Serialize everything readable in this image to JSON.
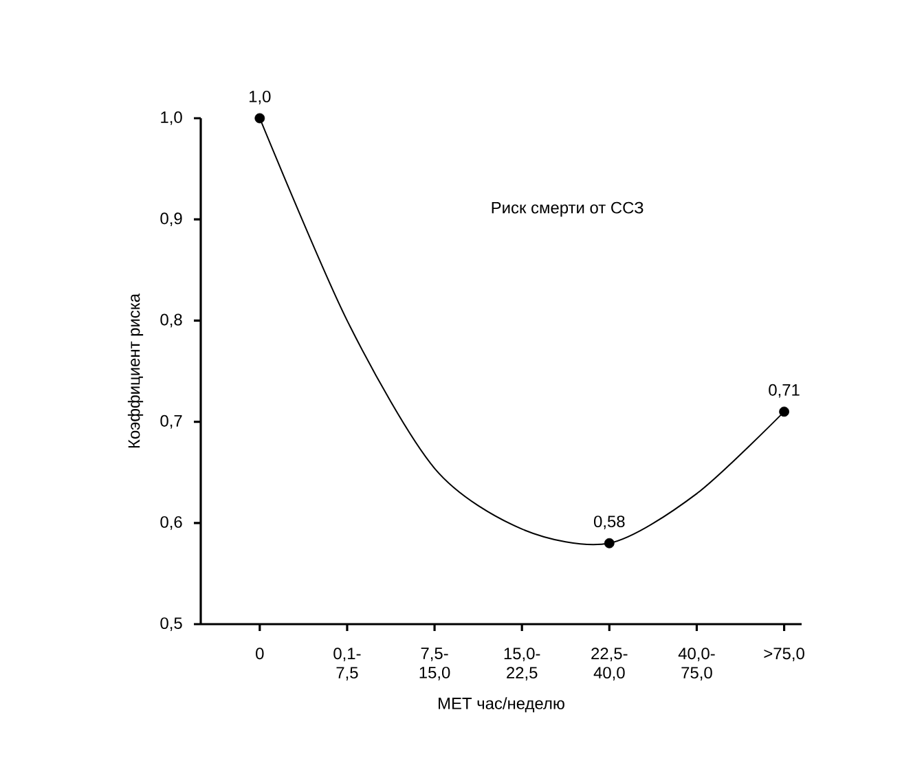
{
  "chart_data": {
    "type": "line",
    "xlabel": "МЕТ час/неделю",
    "ylabel": "Коэффициент риска",
    "annotations": [
      "Риск смерти от ССЗ"
    ],
    "categories": [
      "0",
      "0,1- 7,5",
      "7,5- 15,0",
      "15,0- 22,5",
      "22,5- 40,0",
      "40,0- 75,0",
      ">75,0"
    ],
    "ylim": [
      0.5,
      1.0
    ],
    "yticks": [
      {
        "value": 0.5,
        "label": "0,5"
      },
      {
        "value": 0.6,
        "label": "0,6"
      },
      {
        "value": 0.7,
        "label": "0,7"
      },
      {
        "value": 0.8,
        "label": "0,8"
      },
      {
        "value": 0.9,
        "label": "0,9"
      },
      {
        "value": 1.0,
        "label": "1,0"
      }
    ],
    "series": [
      {
        "color": "#000000",
        "marker": "none",
        "values": [
          1.0,
          0.8,
          0.654,
          0.594,
          0.58,
          0.629,
          0.71
        ]
      },
      {
        "type": "scatter",
        "color": "#000000",
        "marker": "circle",
        "values": [
          1.0,
          null,
          null,
          null,
          0.58,
          null,
          0.71
        ],
        "value_labels": [
          "1,0",
          null,
          null,
          null,
          "0,58",
          null,
          "0,71"
        ]
      }
    ]
  }
}
